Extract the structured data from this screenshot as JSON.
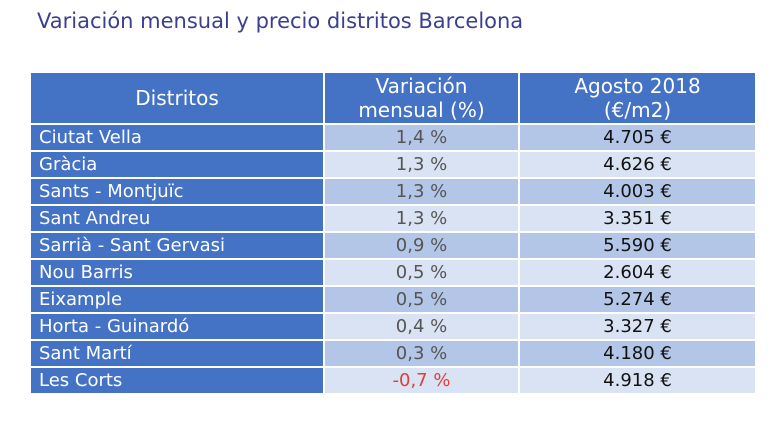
{
  "title": "Variación mensual y precio distritos Barcelona",
  "table": {
    "headers": {
      "district": "Distritos",
      "variation_line1": "Variación",
      "variation_line2": "mensual (%)",
      "price_line1": "Agosto 2018",
      "price_line2": "(€/m2)"
    },
    "rows": [
      {
        "district": "Ciutat Vella",
        "variation": "1,4 %",
        "price": "4.705 €"
      },
      {
        "district": "Gràcia",
        "variation": "1,3 %",
        "price": "4.626 €"
      },
      {
        "district": "Sants - Montjuïc",
        "variation": "1,3 %",
        "price": "4.003 €"
      },
      {
        "district": "Sant Andreu",
        "variation": "1,3 %",
        "price": "3.351 €"
      },
      {
        "district": "Sarrià - Sant Gervasi",
        "variation": "0,9 %",
        "price": "5.590 €"
      },
      {
        "district": "Nou Barris",
        "variation": "0,5 %",
        "price": "2.604 €"
      },
      {
        "district": "Eixample",
        "variation": "0,5 %",
        "price": "5.274 €"
      },
      {
        "district": "Horta - Guinardó",
        "variation": "0,4 %",
        "price": "3.327 €"
      },
      {
        "district": "Sant Martí",
        "variation": "0,3 %",
        "price": "4.180 €"
      },
      {
        "district": "Les Corts",
        "variation": "-0,7 %",
        "price": "4.918 €"
      }
    ]
  },
  "colors": {
    "title": "#3b3f8f",
    "header_bg": "#4472c4",
    "row_odd_bg": "#b4c6e7",
    "row_even_bg": "#dae3f3",
    "negative": "#e03c3c"
  }
}
